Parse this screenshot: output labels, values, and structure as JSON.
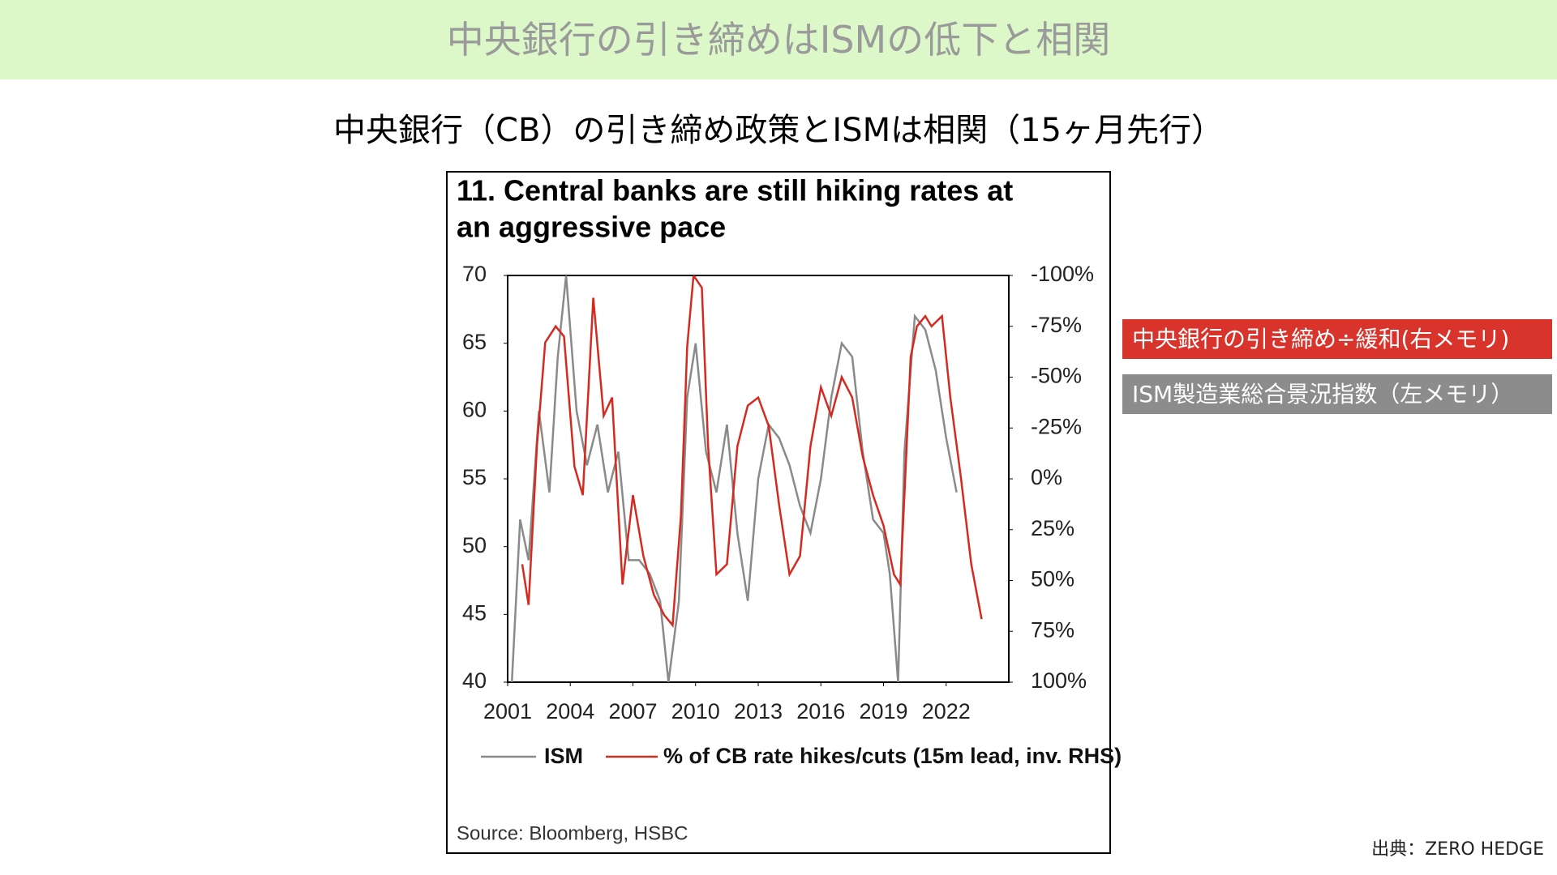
{
  "header": {
    "title": "中央銀行の引き締めはISMの低下と相関"
  },
  "subtitle": "中央銀行（CB）の引き締め政策とISMは相関（15ヶ月先行）",
  "notes": [
    {
      "text": "中央銀行の引き締め÷緩和(右メモリ)",
      "color": "#d9342b"
    },
    {
      "text": "ISM製造業総合景況指数（左メモリ）",
      "color": "#8c8c8c"
    }
  ],
  "credit": "出典：ZERO HEDGE",
  "chart_data": {
    "type": "line",
    "title_lines": [
      "11. Central banks are still hiking rates at",
      "an aggressive pace"
    ],
    "source": "Source: Bloomberg, HSBC",
    "xlim": [
      2001,
      2025
    ],
    "xticks": [
      2001,
      2004,
      2007,
      2010,
      2013,
      2016,
      2019,
      2022
    ],
    "ylim": [
      40,
      70
    ],
    "yticks": [
      40,
      45,
      50,
      55,
      60,
      65,
      70
    ],
    "y2lim": [
      -100,
      100
    ],
    "y2_inverted": true,
    "y2ticks": [
      {
        "value": -100,
        "label": "-100%"
      },
      {
        "value": -75,
        "label": "-75%"
      },
      {
        "value": -50,
        "label": "-50%"
      },
      {
        "value": -25,
        "label": "-25%"
      },
      {
        "value": 0,
        "label": "0%"
      },
      {
        "value": 25,
        "label": "25%"
      },
      {
        "value": 50,
        "label": "50%"
      },
      {
        "value": 75,
        "label": "75%"
      },
      {
        "value": 100,
        "label": "100%"
      }
    ],
    "series": [
      {
        "name": "ISM",
        "color": "#8a8a8a",
        "x": [
          2001.2,
          2001.6,
          2002,
          2002.5,
          2003,
          2003.4,
          2003.8,
          2004.3,
          2004.8,
          2005.3,
          2005.8,
          2006.3,
          2006.8,
          2007.3,
          2007.8,
          2008.3,
          2008.7,
          2009.2,
          2009.6,
          2010,
          2010.5,
          2011,
          2011.5,
          2012,
          2012.5,
          2013,
          2013.5,
          2014,
          2014.5,
          2015,
          2015.5,
          2016,
          2016.5,
          2017,
          2017.5,
          2018,
          2018.5,
          2019,
          2019.3,
          2019.7,
          2020,
          2020.5,
          2021,
          2021.5,
          2022,
          2022.5
        ],
        "values": [
          40,
          52,
          49,
          60,
          54,
          64,
          70,
          60,
          56,
          59,
          54,
          57,
          49,
          49,
          48,
          46,
          40,
          46,
          61,
          65,
          57,
          54,
          59,
          51,
          46,
          55,
          59,
          58,
          56,
          53,
          51,
          55,
          61,
          65,
          64,
          57,
          52,
          51,
          48,
          40,
          57,
          67,
          66,
          63,
          58,
          54
        ]
      },
      {
        "name": "% of CB rate hikes/cuts (15m lead, inv. RHS)",
        "color": "#d42a20",
        "axis": "y2",
        "x": [
          2001.7,
          2002,
          2002.4,
          2002.8,
          2003.3,
          2003.7,
          2004.2,
          2004.6,
          2005.1,
          2005.6,
          2006,
          2006.5,
          2007,
          2007.5,
          2008,
          2008.5,
          2008.9,
          2009.3,
          2009.6,
          2009.9,
          2010.3,
          2010.6,
          2011,
          2011.5,
          2012,
          2012.5,
          2013,
          2013.5,
          2014,
          2014.5,
          2015,
          2015.5,
          2016,
          2016.5,
          2017,
          2017.5,
          2018,
          2018.5,
          2019,
          2019.5,
          2019.8,
          2020,
          2020.3,
          2020.6,
          2021,
          2021.3,
          2021.8,
          2022.2,
          2022.7,
          2023.2,
          2023.7
        ],
        "values": [
          42,
          62,
          -16,
          -67,
          -75,
          -70,
          -6,
          8,
          -89,
          -31,
          -40,
          52,
          8,
          38,
          57,
          67,
          72,
          18,
          -65,
          -100,
          -94,
          -16,
          47,
          42,
          -16,
          -36,
          -40,
          -26,
          13,
          47,
          38,
          -16,
          -45,
          -31,
          -50,
          -40,
          -11,
          8,
          23,
          47,
          52,
          8,
          -60,
          -75,
          -80,
          -75,
          -80,
          -40,
          -1,
          42,
          69
        ]
      }
    ]
  }
}
